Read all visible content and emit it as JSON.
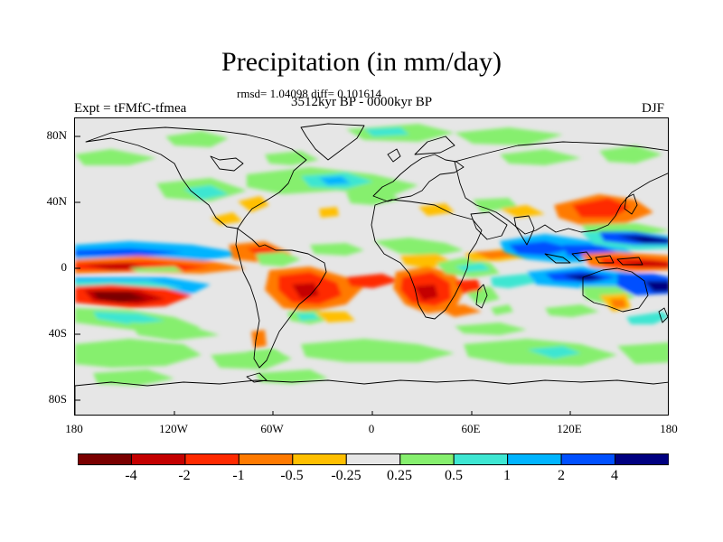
{
  "title": "Precipitation (in mm/day)",
  "stats": "rmsd= 1.04098 diff= 0.101614",
  "period": "3512kyr BP - 0000kyr BP",
  "experiment": "Expt = tFMfC-tfmea",
  "season": "DJF",
  "lat_ticks": [
    "80N",
    "40N",
    "0",
    "40S",
    "80S"
  ],
  "lon_ticks": [
    "180",
    "120W",
    "60W",
    "0",
    "60E",
    "120E",
    "180"
  ],
  "colorbar": {
    "colors": [
      "#7a0000",
      "#c40000",
      "#ff2a00",
      "#ff7a00",
      "#ffbf00",
      "#e6e6e6",
      "#86ef6e",
      "#3ee6d2",
      "#00b4ff",
      "#0050ff",
      "#000080"
    ],
    "labels": [
      "-4",
      "-2",
      "-1",
      "-0.5",
      "-0.25",
      "0.25",
      "0.5",
      "1",
      "2",
      "4"
    ]
  },
  "colors": {
    "background": "#e6e6e6",
    "coast": "#000000"
  }
}
